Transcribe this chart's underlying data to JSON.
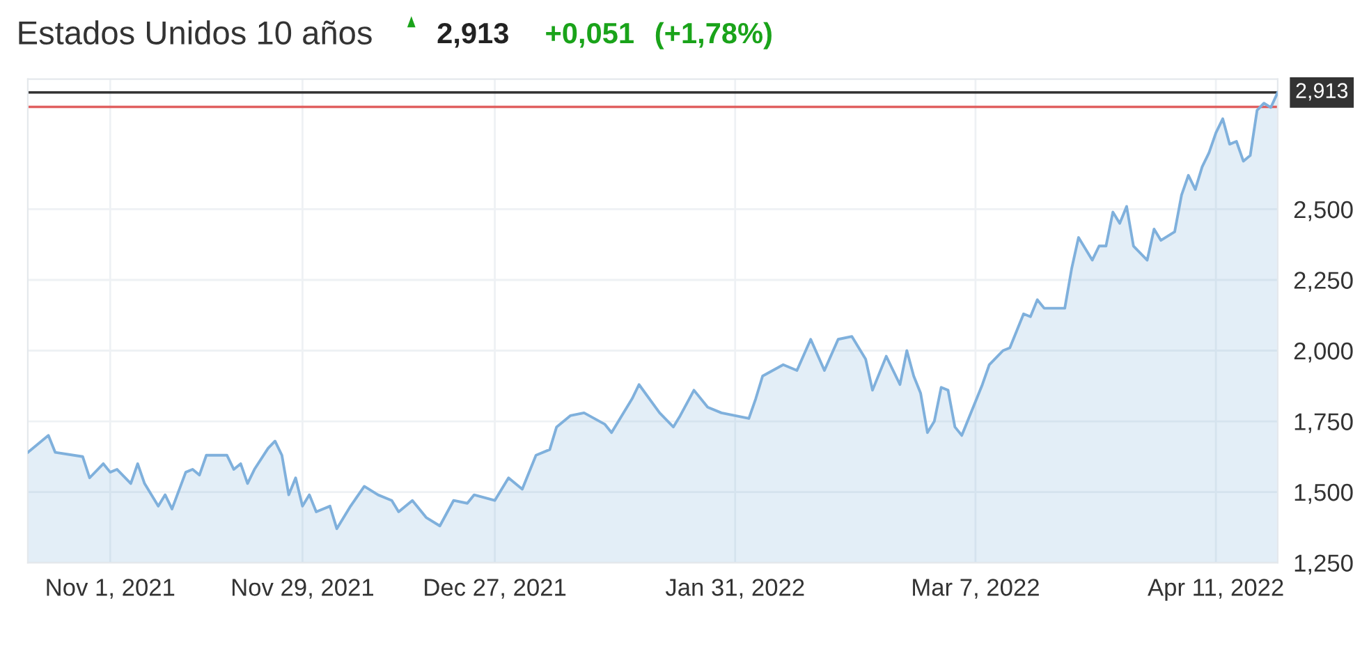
{
  "chart_data": {
    "type": "area",
    "title": "Estados Unidos 10 años",
    "annotations": [
      "2,913",
      "+0,051",
      "(+1,78%)"
    ],
    "x": [
      "2021-10-20",
      "2021-10-23",
      "2021-10-24",
      "2021-10-28",
      "2021-10-29",
      "2021-10-31",
      "2021-11-01",
      "2021-11-02",
      "2021-11-04",
      "2021-11-05",
      "2021-11-06",
      "2021-11-08",
      "2021-11-09",
      "2021-11-10",
      "2021-11-12",
      "2021-11-13",
      "2021-11-14",
      "2021-11-15",
      "2021-11-18",
      "2021-11-19",
      "2021-11-20",
      "2021-11-21",
      "2021-11-22",
      "2021-11-24",
      "2021-11-25",
      "2021-11-26",
      "2021-11-27",
      "2021-11-28",
      "2021-11-29",
      "2021-11-30",
      "2021-12-01",
      "2021-12-03",
      "2021-12-04",
      "2021-12-06",
      "2021-12-08",
      "2021-12-10",
      "2021-12-12",
      "2021-12-13",
      "2021-12-15",
      "2021-12-17",
      "2021-12-19",
      "2021-12-21",
      "2021-12-23",
      "2021-12-24",
      "2021-12-27",
      "2021-12-29",
      "2021-12-31",
      "2022-01-02",
      "2022-01-04",
      "2022-01-05",
      "2022-01-07",
      "2022-01-09",
      "2022-01-12",
      "2022-01-13",
      "2022-01-16",
      "2022-01-17",
      "2022-01-20",
      "2022-01-22",
      "2022-01-23",
      "2022-01-25",
      "2022-01-27",
      "2022-01-29",
      "2022-01-31",
      "2022-02-02",
      "2022-02-03",
      "2022-02-04",
      "2022-02-07",
      "2022-02-09",
      "2022-02-11",
      "2022-02-13",
      "2022-02-15",
      "2022-02-17",
      "2022-02-19",
      "2022-02-20",
      "2022-02-22",
      "2022-02-24",
      "2022-02-25",
      "2022-02-26",
      "2022-02-27",
      "2022-02-28",
      "2022-03-01",
      "2022-03-02",
      "2022-03-03",
      "2022-03-04",
      "2022-03-05",
      "2022-03-08",
      "2022-03-09",
      "2022-03-11",
      "2022-03-12",
      "2022-03-14",
      "2022-03-15",
      "2022-03-16",
      "2022-03-17",
      "2022-03-19",
      "2022-03-20",
      "2022-03-21",
      "2022-03-22",
      "2022-03-24",
      "2022-03-25",
      "2022-03-26",
      "2022-03-27",
      "2022-03-28",
      "2022-03-29",
      "2022-03-30",
      "2022-04-01",
      "2022-04-02",
      "2022-04-03",
      "2022-04-05",
      "2022-04-06",
      "2022-04-07",
      "2022-04-08",
      "2022-04-09",
      "2022-04-10",
      "2022-04-11",
      "2022-04-12",
      "2022-04-13",
      "2022-04-14",
      "2022-04-15",
      "2022-04-16",
      "2022-04-17",
      "2022-04-18",
      "2022-04-19",
      "2022-04-20"
    ],
    "series": [
      {
        "color": "#7fb0dc",
        "values": [
          1.64,
          1.7,
          1.64,
          1.625,
          1.55,
          1.6,
          1.57,
          1.58,
          1.53,
          1.6,
          1.53,
          1.45,
          1.49,
          1.44,
          1.57,
          1.58,
          1.56,
          1.63,
          1.63,
          1.58,
          1.6,
          1.53,
          1.58,
          1.655,
          1.68,
          1.63,
          1.49,
          1.55,
          1.45,
          1.49,
          1.43,
          1.45,
          1.37,
          1.45,
          1.52,
          1.49,
          1.47,
          1.43,
          1.47,
          1.41,
          1.38,
          1.47,
          1.46,
          1.49,
          1.47,
          1.55,
          1.51,
          1.63,
          1.65,
          1.73,
          1.77,
          1.78,
          1.74,
          1.71,
          1.83,
          1.88,
          1.78,
          1.73,
          1.77,
          1.86,
          1.8,
          1.78,
          1.77,
          1.76,
          1.83,
          1.91,
          1.95,
          1.93,
          2.04,
          1.93,
          2.04,
          2.05,
          1.97,
          1.86,
          1.98,
          1.88,
          2.0,
          1.91,
          1.85,
          1.71,
          1.75,
          1.87,
          1.86,
          1.73,
          1.7,
          1.88,
          1.95,
          2.0,
          2.01,
          2.13,
          2.12,
          2.18,
          2.15,
          2.15,
          2.15,
          2.29,
          2.4,
          2.32,
          2.37,
          2.37,
          2.49,
          2.45,
          2.51,
          2.37,
          2.32,
          2.43,
          2.39,
          2.42,
          2.55,
          2.62,
          2.57,
          2.65,
          2.7,
          2.77,
          2.82,
          2.73,
          2.74,
          2.67,
          2.69,
          2.85,
          2.875,
          2.86,
          2.913
        ]
      }
    ],
    "xlim": [
      "2021-10-20",
      "2022-04-20"
    ],
    "xticks": [
      {
        "value": "2021-11-01",
        "label": "Nov 1, 2021"
      },
      {
        "value": "2021-11-29",
        "label": "Nov 29, 2021"
      },
      {
        "value": "2021-12-27",
        "label": "Dec 27, 2021"
      },
      {
        "value": "2022-01-31",
        "label": "Jan 31, 2022"
      },
      {
        "value": "2022-03-07",
        "label": "Mar 7, 2022"
      },
      {
        "value": "2022-04-11",
        "label": "Apr 11, 2022"
      }
    ],
    "ylim": [
      1.25,
      2.96
    ],
    "yticks": [
      {
        "value": 1.25,
        "label": "1,250"
      },
      {
        "value": 1.5,
        "label": "1,500"
      },
      {
        "value": 1.75,
        "label": "1,750"
      },
      {
        "value": 2.0,
        "label": "2,000"
      },
      {
        "value": 2.25,
        "label": "2,250"
      },
      {
        "value": 2.5,
        "label": "2,500"
      }
    ],
    "ref_lines": [
      {
        "axis": "y",
        "value": 2.913,
        "label": "2,913",
        "color": "#333333"
      },
      {
        "axis": "y",
        "value": 2.862,
        "color": "#e06060"
      }
    ],
    "grid": true
  }
}
